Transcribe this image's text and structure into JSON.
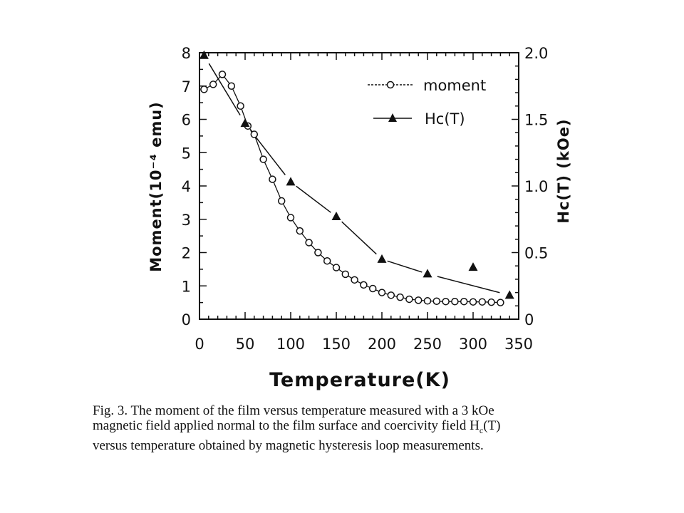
{
  "chart_data": {
    "type": "scatter",
    "xlabel": "Temperature(K)",
    "ylabel": "Moment(10⁻⁴ emu)",
    "y2label": "Hc(T)  (kOe)",
    "xlim": [
      0,
      350
    ],
    "ylim": [
      0,
      8
    ],
    "y2lim": [
      0,
      2.0
    ],
    "x_ticks": [
      "0",
      "50",
      "100",
      "150",
      "200",
      "250",
      "300",
      "350"
    ],
    "y_ticks": [
      "0",
      "1",
      "2",
      "3",
      "4",
      "5",
      "6",
      "7",
      "8"
    ],
    "y2_ticks": [
      "0",
      "0.5",
      "1.0",
      "1.5",
      "2.0"
    ],
    "legend_position": "top-right",
    "series": [
      {
        "name": "moment",
        "axis": "left",
        "marker": "open-circle",
        "x": [
          5,
          15,
          25,
          35,
          45,
          53,
          60,
          70,
          80,
          90,
          100,
          110,
          120,
          130,
          140,
          150,
          160,
          170,
          180,
          190,
          200,
          210,
          220,
          230,
          240,
          250,
          260,
          270,
          280,
          290,
          300,
          310,
          320,
          330
        ],
        "y": [
          6.9,
          7.05,
          7.35,
          7.0,
          6.4,
          5.8,
          5.55,
          4.8,
          4.2,
          3.55,
          3.05,
          2.65,
          2.3,
          2.0,
          1.75,
          1.55,
          1.35,
          1.18,
          1.03,
          0.92,
          0.8,
          0.72,
          0.66,
          0.6,
          0.57,
          0.55,
          0.54,
          0.53,
          0.53,
          0.53,
          0.52,
          0.52,
          0.51,
          0.5
        ]
      },
      {
        "name": "Hc(T)",
        "axis": "right",
        "marker": "filled-triangle",
        "x": [
          5,
          50,
          100,
          150,
          200,
          250,
          300,
          340
        ],
        "y": [
          1.98,
          1.47,
          1.03,
          0.77,
          0.45,
          0.34,
          0.39,
          0.18
        ]
      }
    ]
  },
  "caption": {
    "line1": "Fig. 3. The moment of the film versus temperature measured with a  3 kOe",
    "line2_pre": "magnetic field applied normal to the film surface and coercivity field H",
    "line2_sub": "c",
    "line2_post": "(T)",
    "line3": "versus temperature obtained by magnetic hysteresis loop measurements."
  }
}
